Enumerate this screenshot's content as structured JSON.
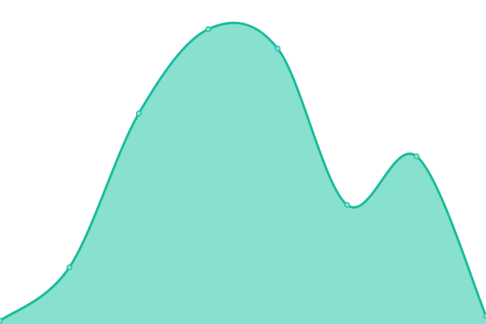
{
  "chart_data": {
    "type": "area",
    "title": "",
    "xlabel": "",
    "ylabel": "",
    "x": [
      0,
      1,
      2,
      3,
      4,
      5,
      6,
      7
    ],
    "series": [
      {
        "values": [
          4,
          70,
          260,
          364,
          340,
          147,
          207,
          10
        ]
      }
    ],
    "xlim": [
      0,
      7
    ],
    "ylim": [
      0,
      400
    ],
    "grid": false,
    "axes_visible": false,
    "smooth": true,
    "colors": {
      "stroke": "#1abc9c",
      "fill": "#88e0cf",
      "marker_fill": "#88e0cf"
    }
  }
}
